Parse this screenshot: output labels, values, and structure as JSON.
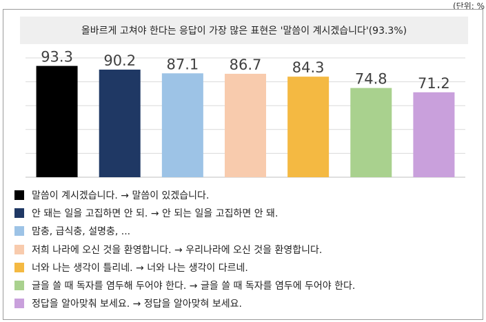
{
  "unit_note": "(단위: %",
  "chart_data": {
    "type": "bar",
    "title": "올바르게 고쳐야 한다는 응답이 가장 많은 표현은 '말씀이 계시겠습니다'(93.3%)",
    "categories": [
      "말씀이 계시겠습니다. → 말씀이 있겠습니다.",
      "안 돼는 일을 고집하면 안 되. → 안 되는 일을 고집하면 안 돼.",
      "맘충, 급식충, 설명충, ...",
      "저희 나라에 오신 것을 환영합니다. → 우리나라에 오신 것을 환영합니다.",
      "너와 나는 생각이 틀리네. → 너와 나는 생각이 다르네.",
      "글을 쓸 때 독자를 염두해 두어야 한다. → 글을 쓸 때 독자를 염두에 두어야 한다.",
      "정답을 알아맞춰 보세요. → 정답을 알아맞혀 보세요."
    ],
    "values": [
      93.3,
      90.2,
      87.1,
      86.7,
      84.3,
      74.8,
      71.2
    ],
    "value_labels": [
      "93.3",
      "90.2",
      "87.1",
      "86.7",
      "84.3",
      "74.8",
      "71.2"
    ],
    "colors": [
      "#000000",
      "#1f3864",
      "#9dc3e6",
      "#f8cbad",
      "#f4b942",
      "#a9d18e",
      "#c9a0dc"
    ],
    "ylim": [
      0,
      100
    ],
    "grid": true,
    "legend_position": "bottom"
  }
}
